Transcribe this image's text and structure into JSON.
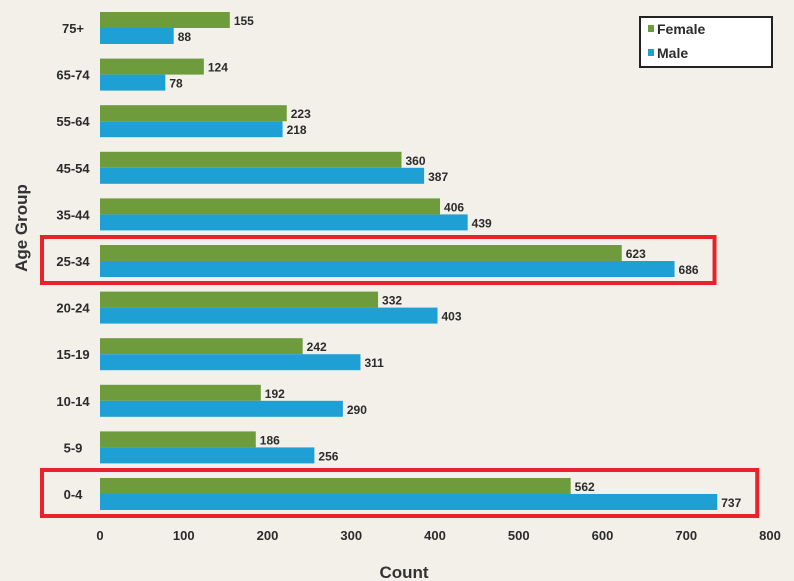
{
  "chart_data": {
    "type": "bar",
    "orientation": "horizontal",
    "title": "",
    "xlabel": "Count",
    "ylabel": "Age Group",
    "xlim": [
      0,
      800
    ],
    "xticks": [
      0,
      100,
      200,
      300,
      400,
      500,
      600,
      700,
      800
    ],
    "categories": [
      "75+",
      "65-74",
      "55-64",
      "45-54",
      "35-44",
      "25-34",
      "20-24",
      "15-19",
      "10-14",
      "5-9",
      "0-4"
    ],
    "series": [
      {
        "name": "Female",
        "color": "#6e9c3c",
        "values": [
          155,
          124,
          223,
          360,
          406,
          623,
          332,
          242,
          192,
          186,
          562
        ]
      },
      {
        "name": "Male",
        "color": "#1ea0d4",
        "values": [
          88,
          78,
          218,
          387,
          439,
          686,
          403,
          311,
          290,
          256,
          737
        ]
      }
    ],
    "legend": "top-right",
    "grid": false,
    "highlighted_categories": [
      "25-34",
      "0-4"
    ],
    "highlight_color": "#e8222b"
  }
}
